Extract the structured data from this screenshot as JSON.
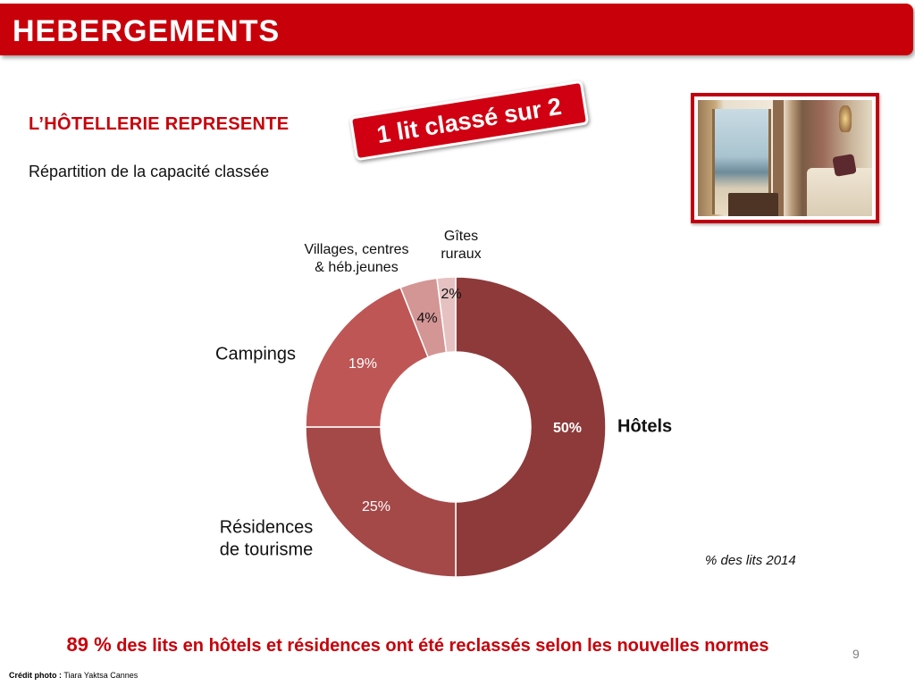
{
  "header": {
    "title": "HEBERGEMENTS"
  },
  "subtitle": "L’HÔTELLERIE REPRESENTE",
  "stamp": "1 lit classé sur 2",
  "capacity_label": "Répartition de la capacité classée",
  "note": "% des lits 2014",
  "footer": {
    "highlight": "89 %",
    "text": " des lits en hôtels et résidences ont été reclassés selon les nouvelles normes"
  },
  "page_number": "9",
  "credit": {
    "label": "Crédit photo :",
    "name": "Tiara Yaktsa Cannes"
  },
  "chart_data": {
    "type": "pie",
    "style": "donut",
    "title": "",
    "categories": [
      "Hôtels",
      "Résidences de tourisme",
      "Campings",
      "Villages, centres & héb.jeunes",
      "Gîtes ruraux"
    ],
    "values": [
      50,
      25,
      19,
      4,
      2
    ],
    "value_labels": [
      "50%",
      "25%",
      "19%",
      "4%",
      "2%"
    ],
    "colors": [
      "#8e3a3a",
      "#a54848",
      "#be5656",
      "#d49595",
      "#e6c1c1"
    ],
    "label_colors": [
      "#ffffff",
      "#ffffff",
      "#ffffff",
      "#111111",
      "#111111"
    ]
  }
}
